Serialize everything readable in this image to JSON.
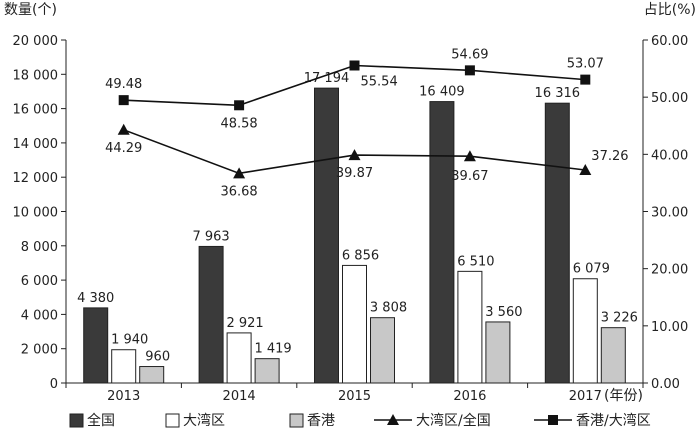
{
  "chart_data": {
    "type": "bar",
    "categories": [
      "2013",
      "2014",
      "2015",
      "2016",
      "2017"
    ],
    "xlabel": "(年份)",
    "ylabel_left": "数量(个)",
    "ylabel_right": "占比(%)",
    "ylim_left": [
      0,
      20000
    ],
    "ylim_right": [
      0,
      60
    ],
    "yticks_left": [
      "0",
      "2 000",
      "4 000",
      "6 000",
      "8 000",
      "10 000",
      "12 000",
      "14 000",
      "16 000",
      "18 000",
      "20 000"
    ],
    "yticks_right": [
      "0.00",
      "10.00",
      "20.00",
      "30.00",
      "40.00",
      "50.00",
      "60.00"
    ],
    "grid": false,
    "legend_position": "bottom",
    "bar_series": [
      {
        "name": "全国",
        "color": "#3a3a3a",
        "values": [
          4380,
          7963,
          17194,
          16409,
          16316
        ],
        "labels": [
          "4 380",
          "7 963",
          "17 194",
          "16 409",
          "16 316"
        ]
      },
      {
        "name": "大湾区",
        "color": "#ffffff",
        "values": [
          1940,
          2921,
          6856,
          6510,
          6079
        ],
        "labels": [
          "1 940",
          "2 921",
          "6 856",
          "6 510",
          "6 079"
        ]
      },
      {
        "name": "香港",
        "color": "#c8c8c8",
        "values": [
          960,
          1419,
          3808,
          3560,
          3226
        ],
        "labels": [
          "960",
          "1 419",
          "3 808",
          "3 560",
          "3 226"
        ]
      }
    ],
    "line_series": [
      {
        "name": "大湾区/全国",
        "marker": "triangle",
        "values": [
          44.29,
          36.68,
          39.87,
          39.67,
          37.26
        ],
        "labels": [
          "44.29",
          "36.68",
          "39.87",
          "39.67",
          "37.26"
        ]
      },
      {
        "name": "香港/大湾区",
        "marker": "square",
        "values": [
          49.48,
          48.58,
          55.54,
          54.69,
          53.07
        ],
        "labels": [
          "49.48",
          "48.58",
          "55.54",
          "54.69",
          "53.07"
        ]
      }
    ]
  }
}
